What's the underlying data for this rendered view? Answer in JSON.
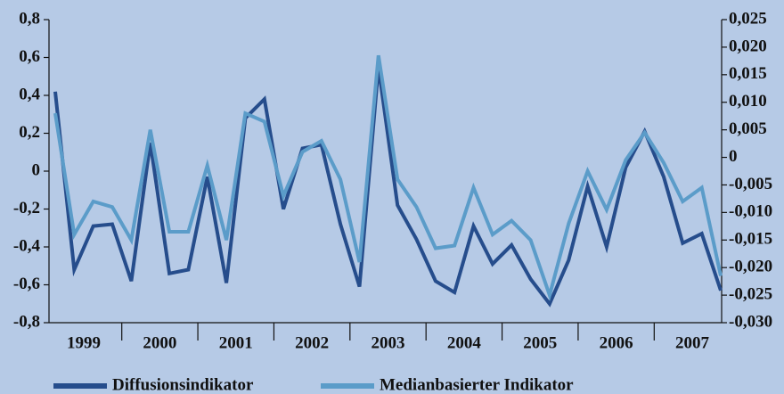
{
  "chart_data": {
    "type": "line",
    "categories": [
      "1999",
      null,
      null,
      null,
      "2000",
      null,
      null,
      null,
      "2001",
      null,
      null,
      null,
      "2002",
      null,
      null,
      null,
      "2003",
      null,
      null,
      null,
      "2004",
      null,
      null,
      null,
      "2005",
      null,
      null,
      null,
      "2006",
      null,
      null,
      null,
      "2007",
      null,
      null,
      null
    ],
    "series": [
      {
        "name": "Diffusionsindikator",
        "color": "#264d8c",
        "axis": "y",
        "values": [
          0.42,
          -0.52,
          -0.29,
          -0.28,
          -0.58,
          0.15,
          -0.54,
          -0.52,
          -0.03,
          -0.59,
          0.28,
          0.38,
          -0.2,
          0.12,
          0.14,
          -0.28,
          -0.61,
          0.55,
          -0.18,
          -0.36,
          -0.58,
          -0.64,
          -0.29,
          -0.49,
          -0.39,
          -0.57,
          -0.7,
          -0.47,
          -0.08,
          -0.4,
          0.02,
          0.21,
          -0.03,
          -0.38,
          -0.33,
          -0.63
        ]
      },
      {
        "name": "Medianbasierter Indikator",
        "color": "#5b9cc9",
        "axis": "y2",
        "values": [
          0.008,
          -0.014,
          -0.008,
          -0.009,
          -0.015,
          0.005,
          -0.0135,
          -0.0135,
          -0.0015,
          -0.015,
          0.008,
          0.0065,
          -0.007,
          0.001,
          0.003,
          -0.004,
          -0.019,
          0.0185,
          -0.004,
          -0.009,
          -0.0165,
          -0.016,
          -0.0055,
          -0.014,
          -0.0115,
          -0.015,
          -0.025,
          -0.012,
          -0.0025,
          -0.0095,
          -0.0005,
          0.0045,
          -0.001,
          -0.008,
          -0.0055,
          -0.0215
        ]
      }
    ],
    "ylim": [
      -0.8,
      0.8
    ],
    "yticks": [
      {
        "value": -0.8,
        "label": "-0,8"
      },
      {
        "value": -0.6,
        "label": "-0,6"
      },
      {
        "value": -0.4,
        "label": "-0,4"
      },
      {
        "value": -0.2,
        "label": "-0,2"
      },
      0,
      {
        "value": 0.2,
        "label": "0,2"
      },
      {
        "value": 0.4,
        "label": "0,4"
      },
      {
        "value": 0.6,
        "label": "0,6"
      },
      {
        "value": 0.8,
        "label": "0,8"
      }
    ],
    "y2lim": [
      -0.03,
      0.025
    ],
    "y2ticks": [
      {
        "value": -0.03,
        "label": "-0,030"
      },
      {
        "value": -0.025,
        "label": "-0,025"
      },
      {
        "value": -0.02,
        "label": "-0,020"
      },
      {
        "value": -0.015,
        "label": "-0,015"
      },
      {
        "value": -0.01,
        "label": "-0,010"
      },
      {
        "value": -0.005,
        "label": "-0,005"
      },
      0,
      {
        "value": 0.005,
        "label": "0,005"
      },
      {
        "value": 0.01,
        "label": "0,010"
      },
      {
        "value": 0.015,
        "label": "0,015"
      },
      {
        "value": 0.02,
        "label": "0,020"
      },
      {
        "value": 0.025,
        "label": "0,025"
      }
    ],
    "grid": false,
    "legend": "bottom"
  }
}
